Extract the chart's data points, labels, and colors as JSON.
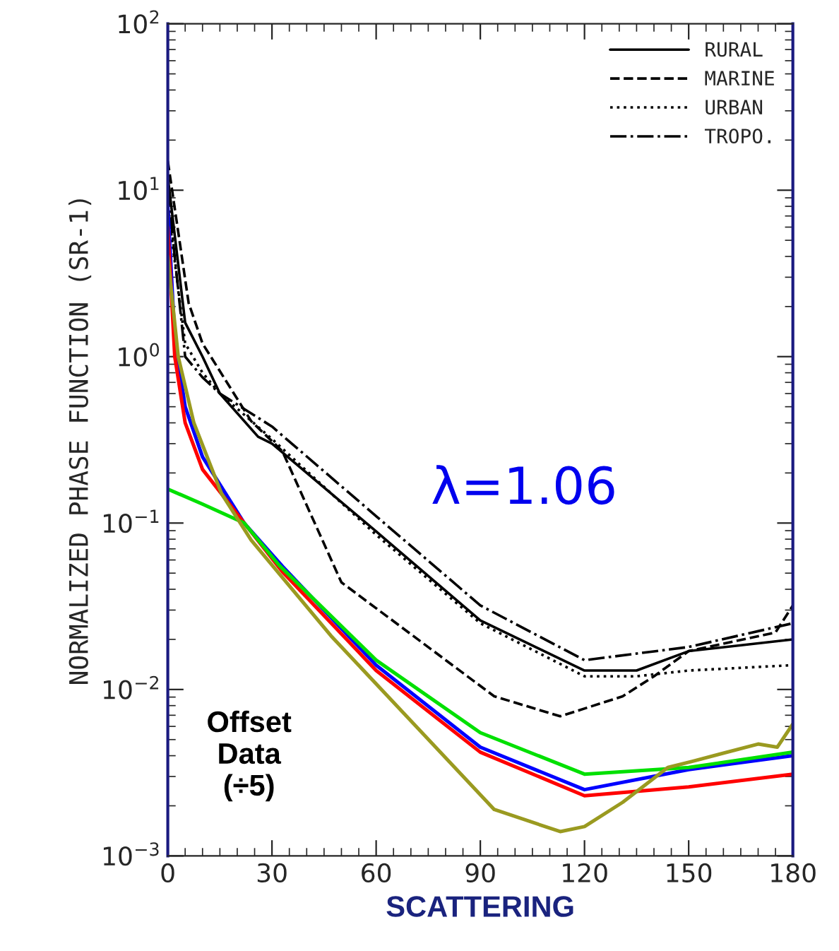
{
  "chart_data": {
    "type": "line",
    "xlabel": "SCATTERING",
    "ylabel": "NORMALIZED PHASE FUNCTION (SR-1)",
    "log": "y",
    "xlim": [
      0,
      180
    ],
    "xticks": [
      0,
      30,
      60,
      90,
      120,
      150,
      180
    ],
    "ylim": [
      0.001,
      100
    ],
    "yticks": [
      {
        "value": 0.001,
        "label": "10$^{−3}$"
      },
      {
        "value": 0.01,
        "label": "10$^{−2}$"
      },
      {
        "value": 0.1,
        "label": "10$^{−1}$"
      },
      {
        "value": 1,
        "label": "10$^{0}$"
      },
      {
        "value": 10,
        "label": "10$^{1}$"
      },
      {
        "value": 100,
        "label": "10$^{2}$"
      }
    ],
    "grid": false,
    "legend": "top right",
    "marker": "none",
    "annotations": [
      "λ=1.06",
      "Offset\nData\n(÷5)"
    ],
    "series": [
      {
        "name": "RURAL",
        "color": "#000000",
        "line_style": "solid",
        "x": [
          0,
          5,
          10,
          15,
          26,
          30,
          60,
          90,
          120,
          135,
          150,
          180
        ],
        "values": [
          12,
          1.6,
          1.0,
          0.6,
          0.33,
          0.3,
          0.089,
          0.026,
          0.013,
          0.013,
          0.017,
          0.02
        ]
      },
      {
        "name": "MARINE",
        "color": "#000000",
        "line_style": "dashed",
        "x": [
          0,
          6,
          10,
          24,
          33,
          50,
          94,
          113,
          131,
          140,
          150,
          175,
          180
        ],
        "values": [
          15,
          2.1,
          1.2,
          0.41,
          0.27,
          0.044,
          0.0091,
          0.0069,
          0.0091,
          0.012,
          0.017,
          0.022,
          0.032
        ]
      },
      {
        "name": "URBAN",
        "color": "#000000",
        "line_style": "dotted",
        "x": [
          0,
          5,
          10,
          15,
          30,
          60,
          90,
          120,
          135,
          150,
          180
        ],
        "values": [
          8,
          1.2,
          0.8,
          0.6,
          0.32,
          0.085,
          0.025,
          0.012,
          0.012,
          0.013,
          0.014
        ]
      },
      {
        "name": "TROPO.",
        "color": "#000000",
        "line_style": "dashdot",
        "x": [
          0,
          5,
          10,
          15,
          30,
          60,
          90,
          120,
          150,
          180
        ],
        "values": [
          10,
          1.0,
          0.75,
          0.6,
          0.38,
          0.11,
          0.032,
          0.015,
          0.018,
          0.025
        ]
      },
      {
        "color": "#0000ff",
        "line_style": "solid",
        "x": [
          0,
          2,
          5,
          10,
          22,
          33,
          60,
          90,
          120,
          150,
          180
        ],
        "values": [
          8,
          1.3,
          0.5,
          0.25,
          0.1,
          0.055,
          0.014,
          0.0045,
          0.0025,
          0.0033,
          0.004
        ]
      },
      {
        "color": "#ff0000",
        "line_style": "solid",
        "x": [
          0,
          2,
          5,
          10,
          22,
          33,
          60,
          90,
          120,
          150,
          180
        ],
        "values": [
          6,
          1.0,
          0.4,
          0.21,
          0.1,
          0.051,
          0.013,
          0.0042,
          0.0023,
          0.0026,
          0.0031
        ]
      },
      {
        "color": "#00e000",
        "line_style": "solid",
        "x": [
          0,
          10,
          22,
          32,
          60,
          90,
          120,
          150,
          180
        ],
        "values": [
          0.16,
          0.13,
          0.1,
          0.056,
          0.015,
          0.0055,
          0.0031,
          0.0034,
          0.0042
        ]
      },
      {
        "color": "#9a9a20",
        "line_style": "solid",
        "x": [
          0,
          3,
          7.5,
          15.5,
          24,
          47,
          94,
          113,
          120,
          131,
          144,
          151,
          170,
          175.5,
          180
        ],
        "values": [
          4,
          1.0,
          0.4,
          0.15,
          0.079,
          0.021,
          0.0019,
          0.0014,
          0.0015,
          0.0021,
          0.0034,
          0.0037,
          0.0047,
          0.0045,
          0.0062
        ]
      }
    ]
  }
}
